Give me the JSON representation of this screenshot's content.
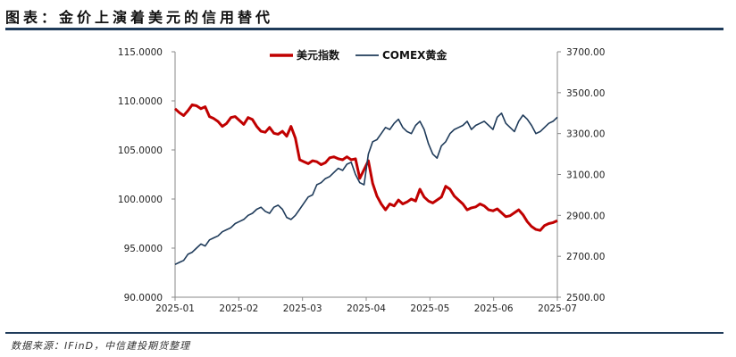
{
  "title": "图表：金价上演着美元的信用替代",
  "source": "数据来源：IFinD，中信建投期货整理",
  "chart_data": {
    "type": "line",
    "x_labels": [
      "2025-01",
      "2025-02",
      "2025-03",
      "2025-04",
      "2025-05",
      "2025-06",
      "2025-07"
    ],
    "left_axis": {
      "ticks": [
        "90.0000",
        "95.0000",
        "100.0000",
        "105.0000",
        "110.0000",
        "115.0000"
      ],
      "ylim": [
        90,
        115
      ]
    },
    "right_axis": {
      "ticks": [
        "2500.00",
        "2700.00",
        "2900.00",
        "3100.00",
        "3300.00",
        "3500.00",
        "3700.00"
      ],
      "ylim": [
        2500,
        3700
      ]
    },
    "legend_position": "top-center",
    "series": [
      {
        "name": "美元指数",
        "axis": "left",
        "color": "#c00000",
        "values": [
          109.2,
          108.8,
          108.5,
          109.0,
          109.6,
          109.5,
          109.2,
          109.4,
          108.4,
          108.2,
          107.9,
          107.4,
          107.7,
          108.3,
          108.4,
          108.0,
          107.6,
          108.3,
          108.1,
          107.4,
          106.9,
          106.8,
          107.3,
          106.7,
          106.6,
          106.9,
          106.4,
          107.4,
          106.2,
          104.0,
          103.8,
          103.6,
          103.9,
          103.8,
          103.5,
          103.7,
          104.2,
          104.3,
          104.1,
          104.0,
          104.3,
          104.0,
          104.1,
          102.1,
          103.0,
          103.9,
          101.6,
          100.3,
          99.5,
          98.9,
          99.5,
          99.3,
          99.9,
          99.5,
          99.7,
          100.0,
          99.8,
          101.0,
          100.2,
          99.8,
          99.6,
          99.9,
          100.2,
          101.3,
          101.0,
          100.3,
          99.9,
          99.5,
          98.9,
          99.1,
          99.2,
          99.5,
          99.3,
          98.9,
          98.8,
          99.0,
          98.6,
          98.2,
          98.3,
          98.6,
          98.9,
          98.4,
          97.7,
          97.2,
          96.9,
          96.8,
          97.3,
          97.5,
          97.6,
          97.8
        ]
      },
      {
        "name": "COMEX黄金",
        "axis": "right",
        "color": "#1f3b5a",
        "values": [
          2660,
          2670,
          2680,
          2710,
          2720,
          2740,
          2760,
          2750,
          2780,
          2790,
          2800,
          2820,
          2830,
          2840,
          2860,
          2870,
          2880,
          2900,
          2910,
          2930,
          2940,
          2920,
          2910,
          2940,
          2950,
          2930,
          2890,
          2880,
          2900,
          2930,
          2960,
          2990,
          3000,
          3050,
          3060,
          3080,
          3090,
          3110,
          3130,
          3120,
          3150,
          3160,
          3100,
          3060,
          3050,
          3200,
          3260,
          3270,
          3300,
          3330,
          3320,
          3350,
          3370,
          3330,
          3310,
          3300,
          3340,
          3360,
          3320,
          3250,
          3200,
          3180,
          3240,
          3260,
          3300,
          3320,
          3330,
          3340,
          3360,
          3320,
          3340,
          3350,
          3360,
          3340,
          3320,
          3380,
          3400,
          3350,
          3330,
          3310,
          3360,
          3390,
          3370,
          3340,
          3300,
          3310,
          3330,
          3350,
          3360,
          3380
        ]
      }
    ]
  }
}
